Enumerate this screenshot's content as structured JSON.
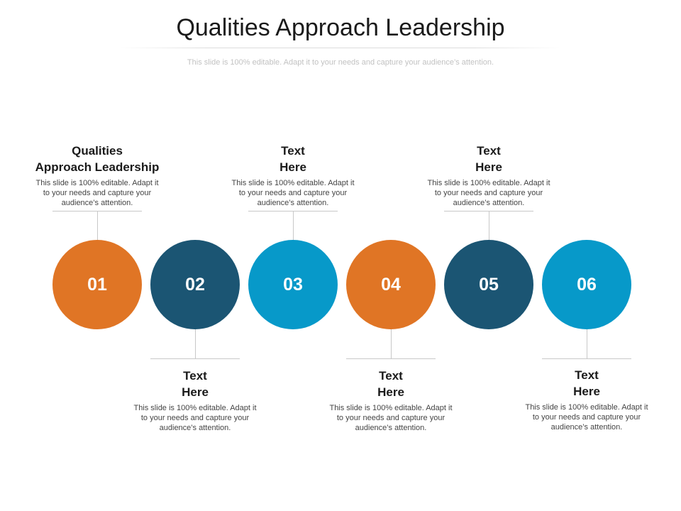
{
  "title": "Qualities Approach Leadership",
  "subtitle": "This slide is 100% editable. Adapt it to your needs and capture your audience’s attention.",
  "colors": {
    "orange": "#E07525",
    "navy": "#1B5573",
    "blue": "#0799C9"
  },
  "steps": [
    {
      "number": "01",
      "color": "#E07525",
      "heading": "Qualities\nApproach Leadership",
      "text": "This slide is 100% editable. Adapt it to your needs and capture your audience’s attention."
    },
    {
      "number": "02",
      "color": "#1B5573",
      "heading": "Text\nHere",
      "text": "This slide is 100% editable. Adapt it to your needs and capture your audience’s attention."
    },
    {
      "number": "03",
      "color": "#0799C9",
      "heading": "Text\nHere",
      "text": "This slide is 100% editable. Adapt it to your needs and capture your audience’s attention."
    },
    {
      "number": "04",
      "color": "#E07525",
      "heading": "Text\nHere",
      "text": "This slide is 100% editable. Adapt it to your needs and capture your audience’s attention."
    },
    {
      "number": "05",
      "color": "#1B5573",
      "heading": "Text\nHere",
      "text": "This slide is 100% editable. Adapt it to your needs and capture your audience’s attention."
    },
    {
      "number": "06",
      "color": "#0799C9",
      "heading": "Text\nHere",
      "text": "This slide is 100% editable. Adapt it to your needs and capture your audience’s attention."
    }
  ]
}
